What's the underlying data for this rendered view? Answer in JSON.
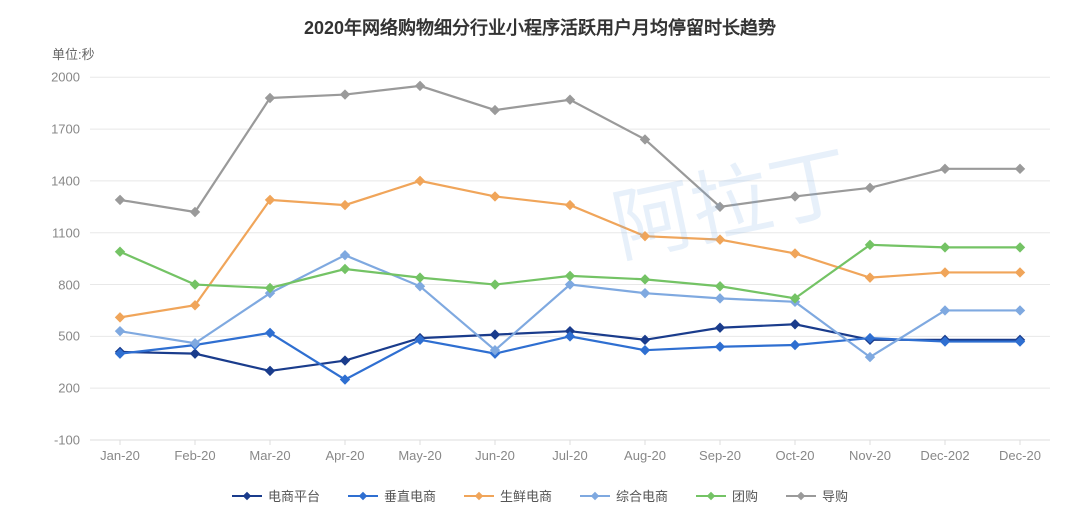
{
  "chart": {
    "type": "line",
    "title": "2020年网络购物细分行业小程序活跃用户月均停留时长趋势",
    "y_unit_label": "单位:秒",
    "title_fontsize": 18,
    "label_fontsize": 13,
    "background_color": "#ffffff",
    "grid_color": "#e8e8e8",
    "axis_color": "#dcdcdc",
    "watermark_text": "阿拉丁",
    "watermark_color": "rgba(120,170,230,0.18)",
    "x_categories": [
      "Jan-20",
      "Feb-20",
      "Mar-20",
      "Apr-20",
      "May-20",
      "Jun-20",
      "Jul-20",
      "Aug-20",
      "Sep-20",
      "Oct-20",
      "Nov-20",
      "Dec-202",
      "Dec-20"
    ],
    "y_ticks": [
      -100,
      200,
      500,
      800,
      1100,
      1400,
      1700,
      2000
    ],
    "ylim": [
      -100,
      2100
    ],
    "line_width": 2.2,
    "marker_size": 4.5,
    "marker_shape": "diamond",
    "series": [
      {
        "name": "电商平台",
        "color": "#1a3c8c",
        "values": [
          410,
          400,
          300,
          360,
          490,
          510,
          530,
          480,
          550,
          570,
          480,
          480,
          480
        ]
      },
      {
        "name": "垂直电商",
        "color": "#2f6fd1",
        "values": [
          400,
          450,
          520,
          250,
          480,
          400,
          500,
          420,
          440,
          450,
          490,
          470,
          470
        ]
      },
      {
        "name": "生鲜电商",
        "color": "#f0a55a",
        "values": [
          610,
          680,
          1290,
          1260,
          1400,
          1310,
          1260,
          1080,
          1060,
          980,
          840,
          870,
          870
        ]
      },
      {
        "name": "综合电商",
        "color": "#7fa9e0",
        "values": [
          530,
          460,
          750,
          970,
          790,
          420,
          800,
          750,
          720,
          700,
          380,
          650,
          650
        ]
      },
      {
        "name": "团购",
        "color": "#74c365",
        "values": [
          990,
          800,
          780,
          890,
          840,
          800,
          850,
          830,
          790,
          720,
          1030,
          1015,
          1015
        ]
      },
      {
        "name": "导购",
        "color": "#9a9a9a",
        "values": [
          1290,
          1220,
          1880,
          1900,
          1950,
          1810,
          1870,
          1640,
          1250,
          1310,
          1360,
          1470,
          1470
        ]
      }
    ]
  }
}
